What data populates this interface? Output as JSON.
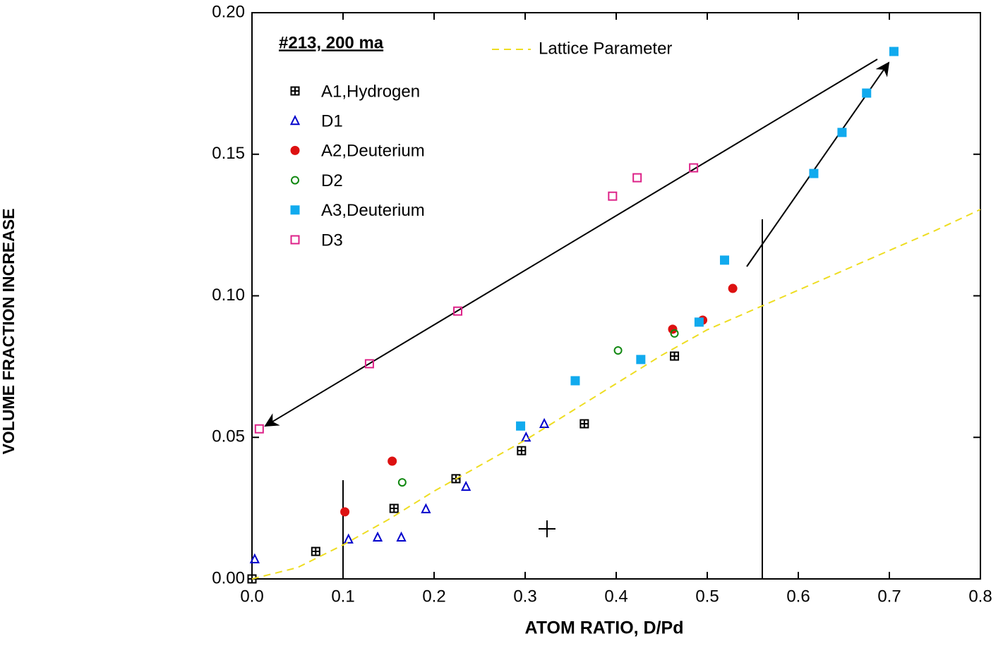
{
  "chart_data": {
    "type": "scatter",
    "xlabel": "ATOM RATIO, D/Pd",
    "ylabel": "VOLUME FRACTION INCREASE",
    "annotation": "#213, 200 ma",
    "xlim": [
      0,
      0.8
    ],
    "ylim": [
      0,
      0.2
    ],
    "xticks": [
      {
        "value": 0,
        "label": "0.0"
      },
      {
        "value": 0.1,
        "label": "0.1"
      },
      {
        "value": 0.2,
        "label": "0.2"
      },
      {
        "value": 0.3,
        "label": "0.3"
      },
      {
        "value": 0.4,
        "label": "0.4"
      },
      {
        "value": 0.5,
        "label": "0.5"
      },
      {
        "value": 0.6,
        "label": "0.6"
      },
      {
        "value": 0.7,
        "label": "0.7"
      },
      {
        "value": 0.8,
        "label": "0.8"
      }
    ],
    "yticks": [
      {
        "value": 0,
        "label": "0.00"
      },
      {
        "value": 0.05,
        "label": "0.05"
      },
      {
        "value": 0.1,
        "label": "0.10"
      },
      {
        "value": 0.15,
        "label": "0.15"
      },
      {
        "value": 0.2,
        "label": "0.20"
      }
    ],
    "series": [
      {
        "name": "A1,Hydrogen",
        "color": "#000000",
        "marker": "square-plus",
        "x": [
          0.0,
          0.07,
          0.156,
          0.224,
          0.296,
          0.365,
          0.464
        ],
        "values": [
          0.0,
          0.0097,
          0.0249,
          0.0354,
          0.0453,
          0.0548,
          0.0787
        ]
      },
      {
        "name": "D1",
        "color": "#0000cc",
        "marker": "triangle-open",
        "x": [
          0.003,
          0.106,
          0.138,
          0.164,
          0.191,
          0.235,
          0.301,
          0.321
        ],
        "values": [
          0.007,
          0.014,
          0.0147,
          0.0147,
          0.0247,
          0.0326,
          0.05,
          0.0548
        ]
      },
      {
        "name": "A2,Deuterium",
        "color": "#dd1111",
        "marker": "circle-filled",
        "x": [
          0.102,
          0.154,
          0.462,
          0.495,
          0.528
        ],
        "values": [
          0.0237,
          0.0416,
          0.0882,
          0.0914,
          0.1026
        ]
      },
      {
        "name": "D2",
        "color": "#118811",
        "marker": "circle-open",
        "x": [
          0.165,
          0.402,
          0.464
        ],
        "values": [
          0.0341,
          0.0807,
          0.0867
        ]
      },
      {
        "name": "A3,Deuterium",
        "color": "#11aaee",
        "marker": "square-filled",
        "x": [
          0.295,
          0.355,
          0.427,
          0.491,
          0.519,
          0.617,
          0.648,
          0.675,
          0.705
        ],
        "values": [
          0.054,
          0.07,
          0.0775,
          0.0907,
          0.1126,
          0.1432,
          0.1577,
          0.1716,
          0.1863
        ]
      },
      {
        "name": "D3",
        "color": "#dd2288",
        "marker": "square-open",
        "x": [
          0.008,
          0.129,
          0.226,
          0.396,
          0.423,
          0.485
        ],
        "values": [
          0.053,
          0.076,
          0.0946,
          0.1352,
          0.1417,
          0.1452
        ]
      },
      {
        "name": "Lattice Parameter",
        "color": "#eedd22",
        "line": "dashed",
        "x": [
          0,
          0.05,
          0.1,
          0.15,
          0.2,
          0.25,
          0.3,
          0.35,
          0.4,
          0.45,
          0.5,
          0.55,
          0.6,
          0.65,
          0.7,
          0.75,
          0.8
        ],
        "values": [
          0,
          0.004,
          0.012,
          0.021,
          0.031,
          0.04,
          0.049,
          0.059,
          0.069,
          0.079,
          0.088,
          0.095,
          0.102,
          0.109,
          0.116,
          0.123,
          0.1305
        ]
      }
    ]
  }
}
